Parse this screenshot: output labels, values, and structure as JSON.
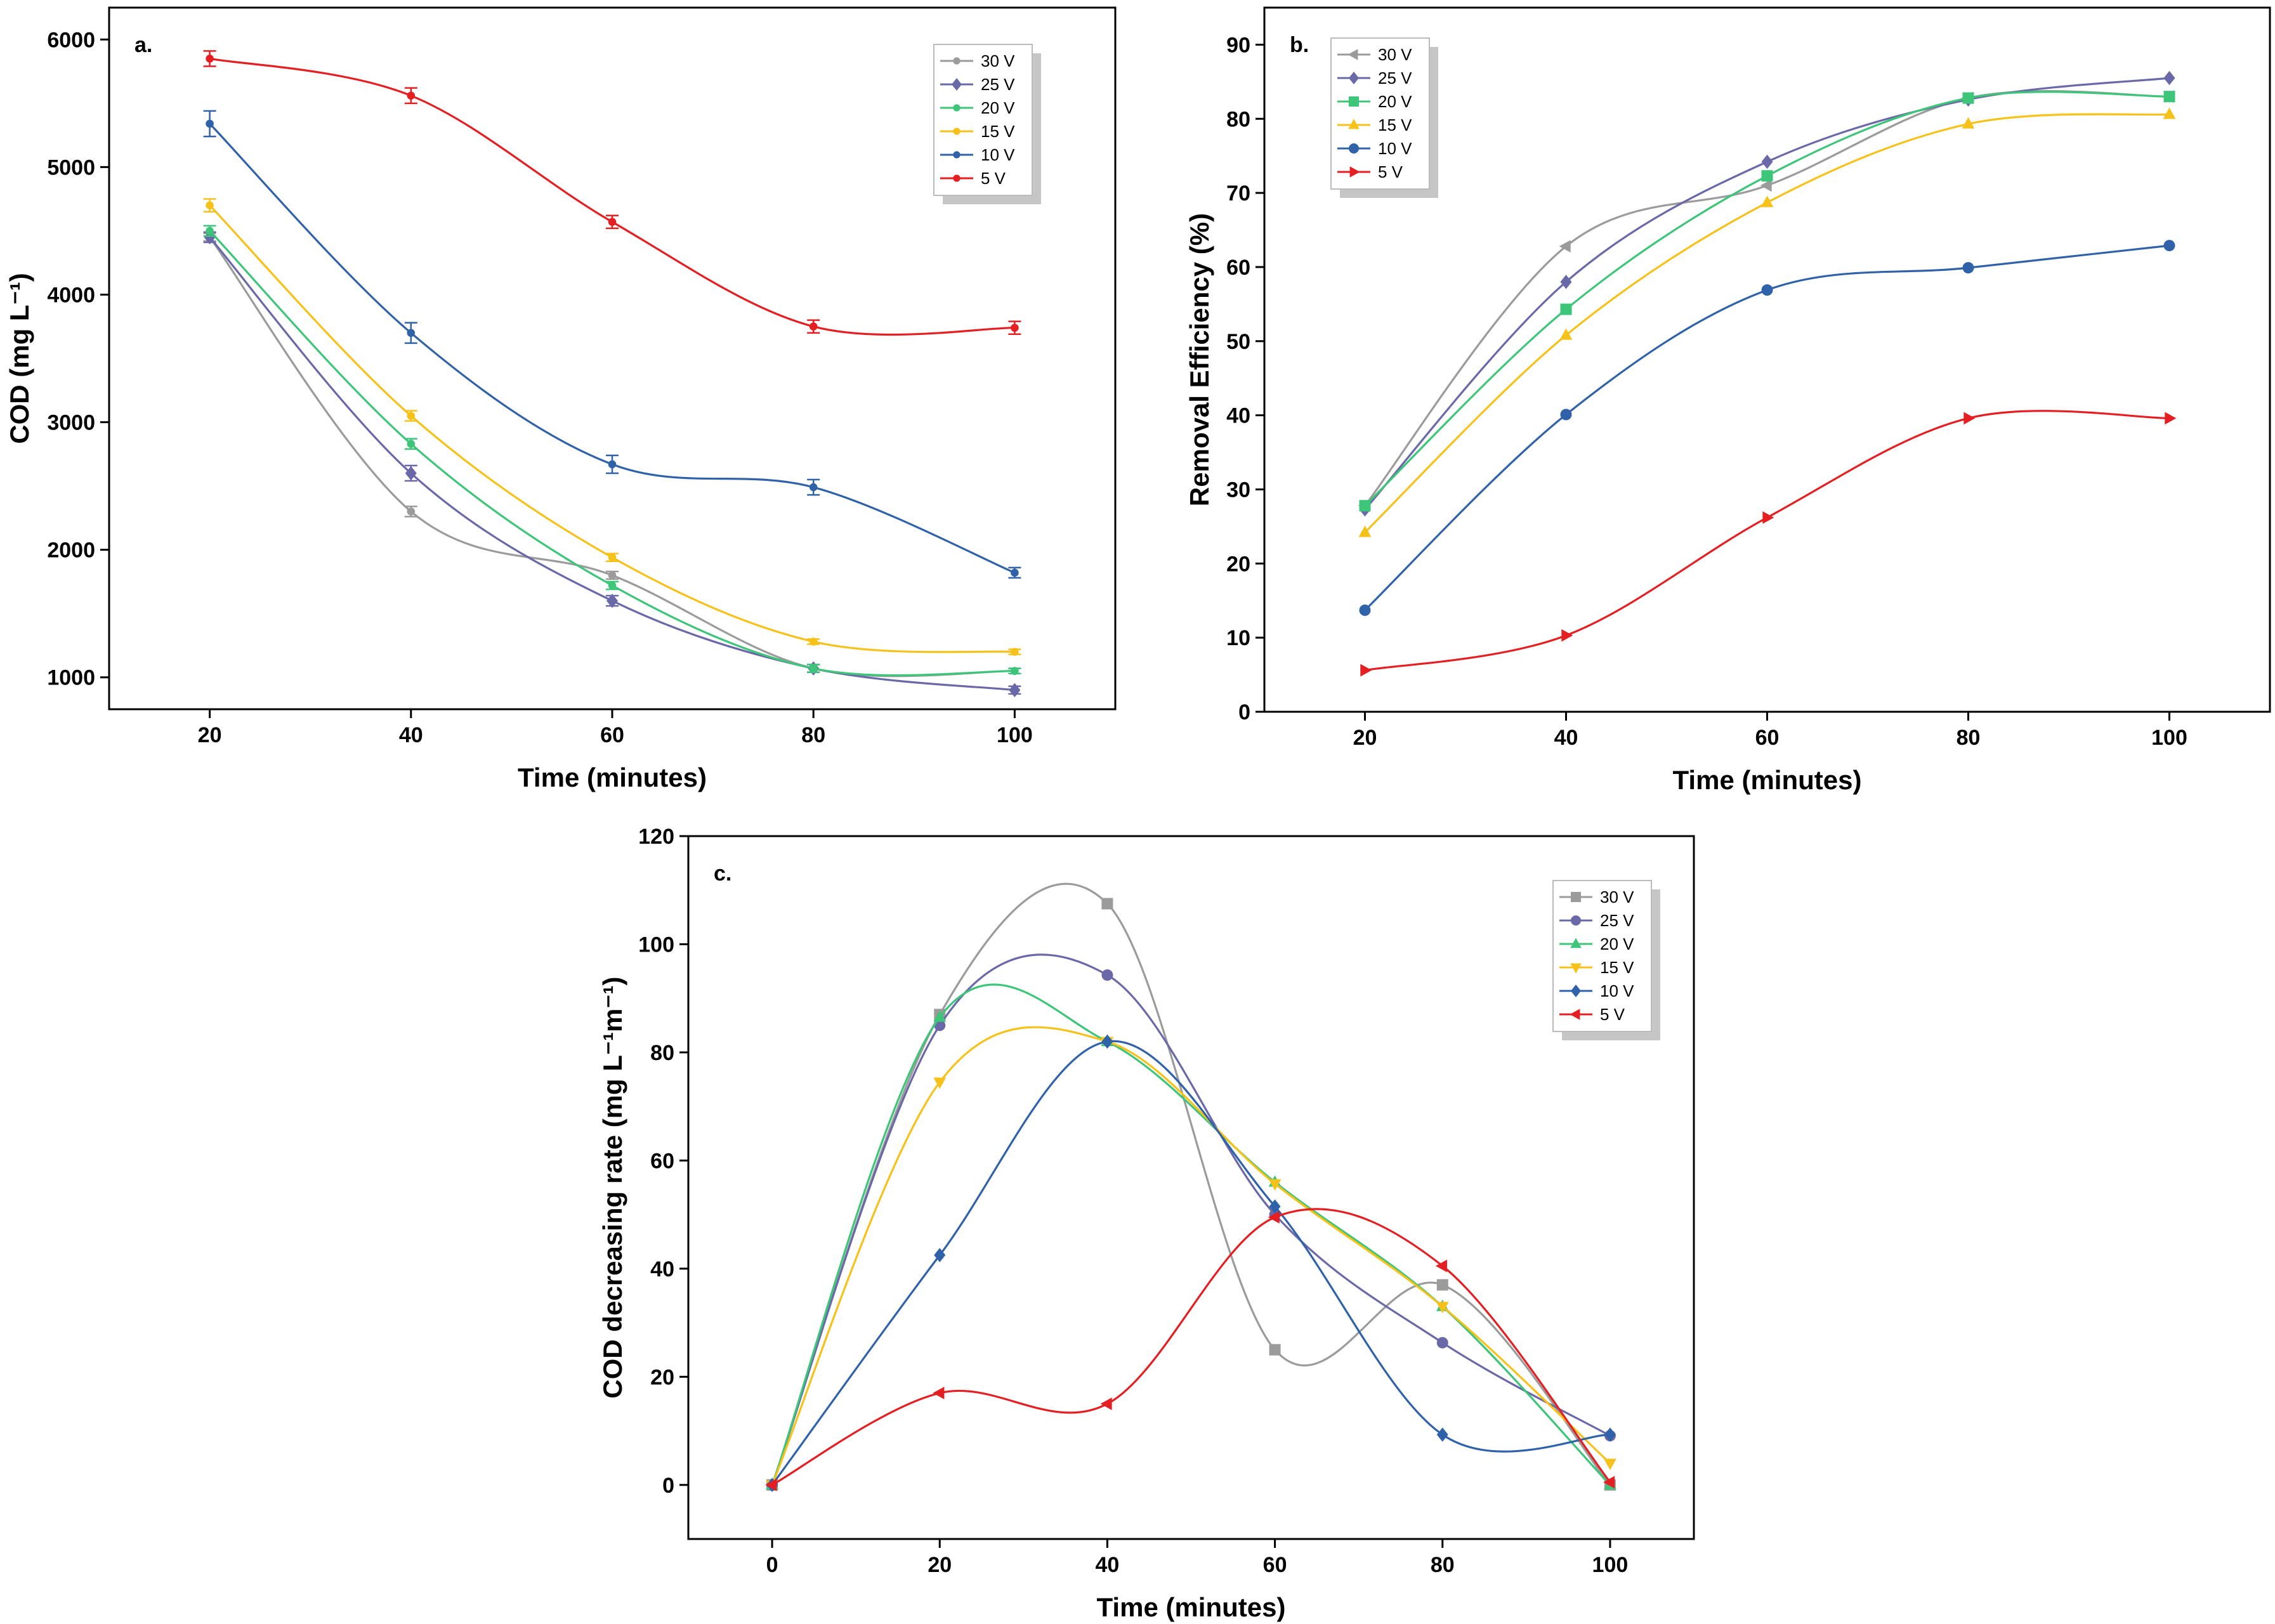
{
  "colors": {
    "30 V": "#9b9b9b",
    "25 V": "#6a68a8",
    "20 V": "#3dc57a",
    "15 V": "#f6c21a",
    "10 V": "#2f62a8",
    "5 V": "#e51e22"
  },
  "chart_data": [
    {
      "type": "line",
      "panel": "a.",
      "xlabel": "Time (minutes)",
      "ylabel": "COD (mg L⁻¹)",
      "xlim": [
        10,
        110
      ],
      "ylim": [
        750,
        6250
      ],
      "xticks": [
        20,
        40,
        60,
        80,
        100
      ],
      "yticks": [
        1000,
        2000,
        3000,
        4000,
        5000,
        6000
      ],
      "x": [
        20,
        40,
        60,
        80,
        100
      ],
      "legend_position": "top-right",
      "series": [
        {
          "name": "30 V",
          "marker": "dot",
          "values": [
            4450,
            2300,
            1800,
            1070,
            1050
          ],
          "errors": [
            30,
            40,
            30,
            30,
            20
          ]
        },
        {
          "name": "25 V",
          "marker": "diamond",
          "values": [
            4450,
            2600,
            1600,
            1070,
            900
          ],
          "errors": [
            40,
            60,
            40,
            30,
            30
          ]
        },
        {
          "name": "20 V",
          "marker": "dot",
          "values": [
            4500,
            2830,
            1720,
            1070,
            1050
          ],
          "errors": [
            40,
            40,
            30,
            30,
            20
          ]
        },
        {
          "name": "15 V",
          "marker": "dot",
          "values": [
            4700,
            3050,
            1940,
            1280,
            1200
          ],
          "errors": [
            50,
            40,
            30,
            20,
            20
          ]
        },
        {
          "name": "10 V",
          "marker": "dot",
          "values": [
            5340,
            3700,
            2670,
            2490,
            1820
          ],
          "errors": [
            100,
            80,
            70,
            60,
            40
          ]
        },
        {
          "name": "5 V",
          "marker": "dot",
          "values": [
            5850,
            5560,
            4570,
            3750,
            3740
          ],
          "errors": [
            60,
            60,
            50,
            50,
            50
          ]
        }
      ]
    },
    {
      "type": "line",
      "panel": "b.",
      "xlabel": "Time (minutes)",
      "ylabel": "Removal Efficiency (%)",
      "xlim": [
        10,
        110
      ],
      "ylim": [
        0,
        95
      ],
      "xticks": [
        20,
        40,
        60,
        80,
        100
      ],
      "yticks": [
        0,
        10,
        20,
        30,
        40,
        50,
        60,
        70,
        80,
        90
      ],
      "x": [
        20,
        40,
        60,
        80,
        100
      ],
      "legend_position": "top-left",
      "series": [
        {
          "name": "30 V",
          "marker": "triangle-left",
          "values": [
            27.8,
            62.8,
            71.0,
            82.8,
            83.0
          ]
        },
        {
          "name": "25 V",
          "marker": "diamond",
          "values": [
            27.3,
            58.0,
            74.2,
            82.6,
            85.5
          ]
        },
        {
          "name": "20 V",
          "marker": "square",
          "values": [
            27.8,
            54.3,
            72.3,
            82.8,
            83.0
          ]
        },
        {
          "name": "15 V",
          "marker": "triangle-up",
          "values": [
            24.2,
            50.8,
            68.7,
            79.3,
            80.6
          ]
        },
        {
          "name": "10 V",
          "marker": "circle",
          "values": [
            13.7,
            40.1,
            56.9,
            59.9,
            62.9
          ]
        },
        {
          "name": "5 V",
          "marker": "triangle-right",
          "values": [
            5.6,
            10.3,
            26.2,
            39.6,
            39.6
          ]
        }
      ]
    },
    {
      "type": "line",
      "panel": "c.",
      "xlabel": "Time (minutes)",
      "ylabel": "COD decreasing rate (mg L⁻¹m⁻¹)",
      "xlim": [
        -10,
        110
      ],
      "ylim": [
        -10,
        120
      ],
      "xticks": [
        0,
        20,
        40,
        60,
        80,
        100
      ],
      "yticks": [
        0,
        20,
        40,
        60,
        80,
        100,
        120
      ],
      "x": [
        0,
        20,
        40,
        60,
        80,
        100
      ],
      "legend_position": "top-right",
      "series": [
        {
          "name": "30 V",
          "marker": "square",
          "values": [
            0,
            87,
            107.5,
            25,
            37,
            0
          ]
        },
        {
          "name": "25 V",
          "marker": "circle",
          "values": [
            0,
            85,
            94.3,
            50,
            26.3,
            9.1
          ]
        },
        {
          "name": "20 V",
          "marker": "triangle-up",
          "values": [
            0,
            86.5,
            82,
            56,
            33,
            0
          ]
        },
        {
          "name": "15 V",
          "marker": "triangle-down",
          "values": [
            0,
            74.5,
            82,
            55.7,
            33,
            4
          ]
        },
        {
          "name": "10 V",
          "marker": "diamond",
          "values": [
            0,
            42.5,
            82,
            51.5,
            9.3,
            9.3
          ]
        },
        {
          "name": "5 V",
          "marker": "triangle-left",
          "values": [
            0,
            17,
            15,
            49.5,
            40.5,
            0.5
          ]
        }
      ]
    }
  ]
}
